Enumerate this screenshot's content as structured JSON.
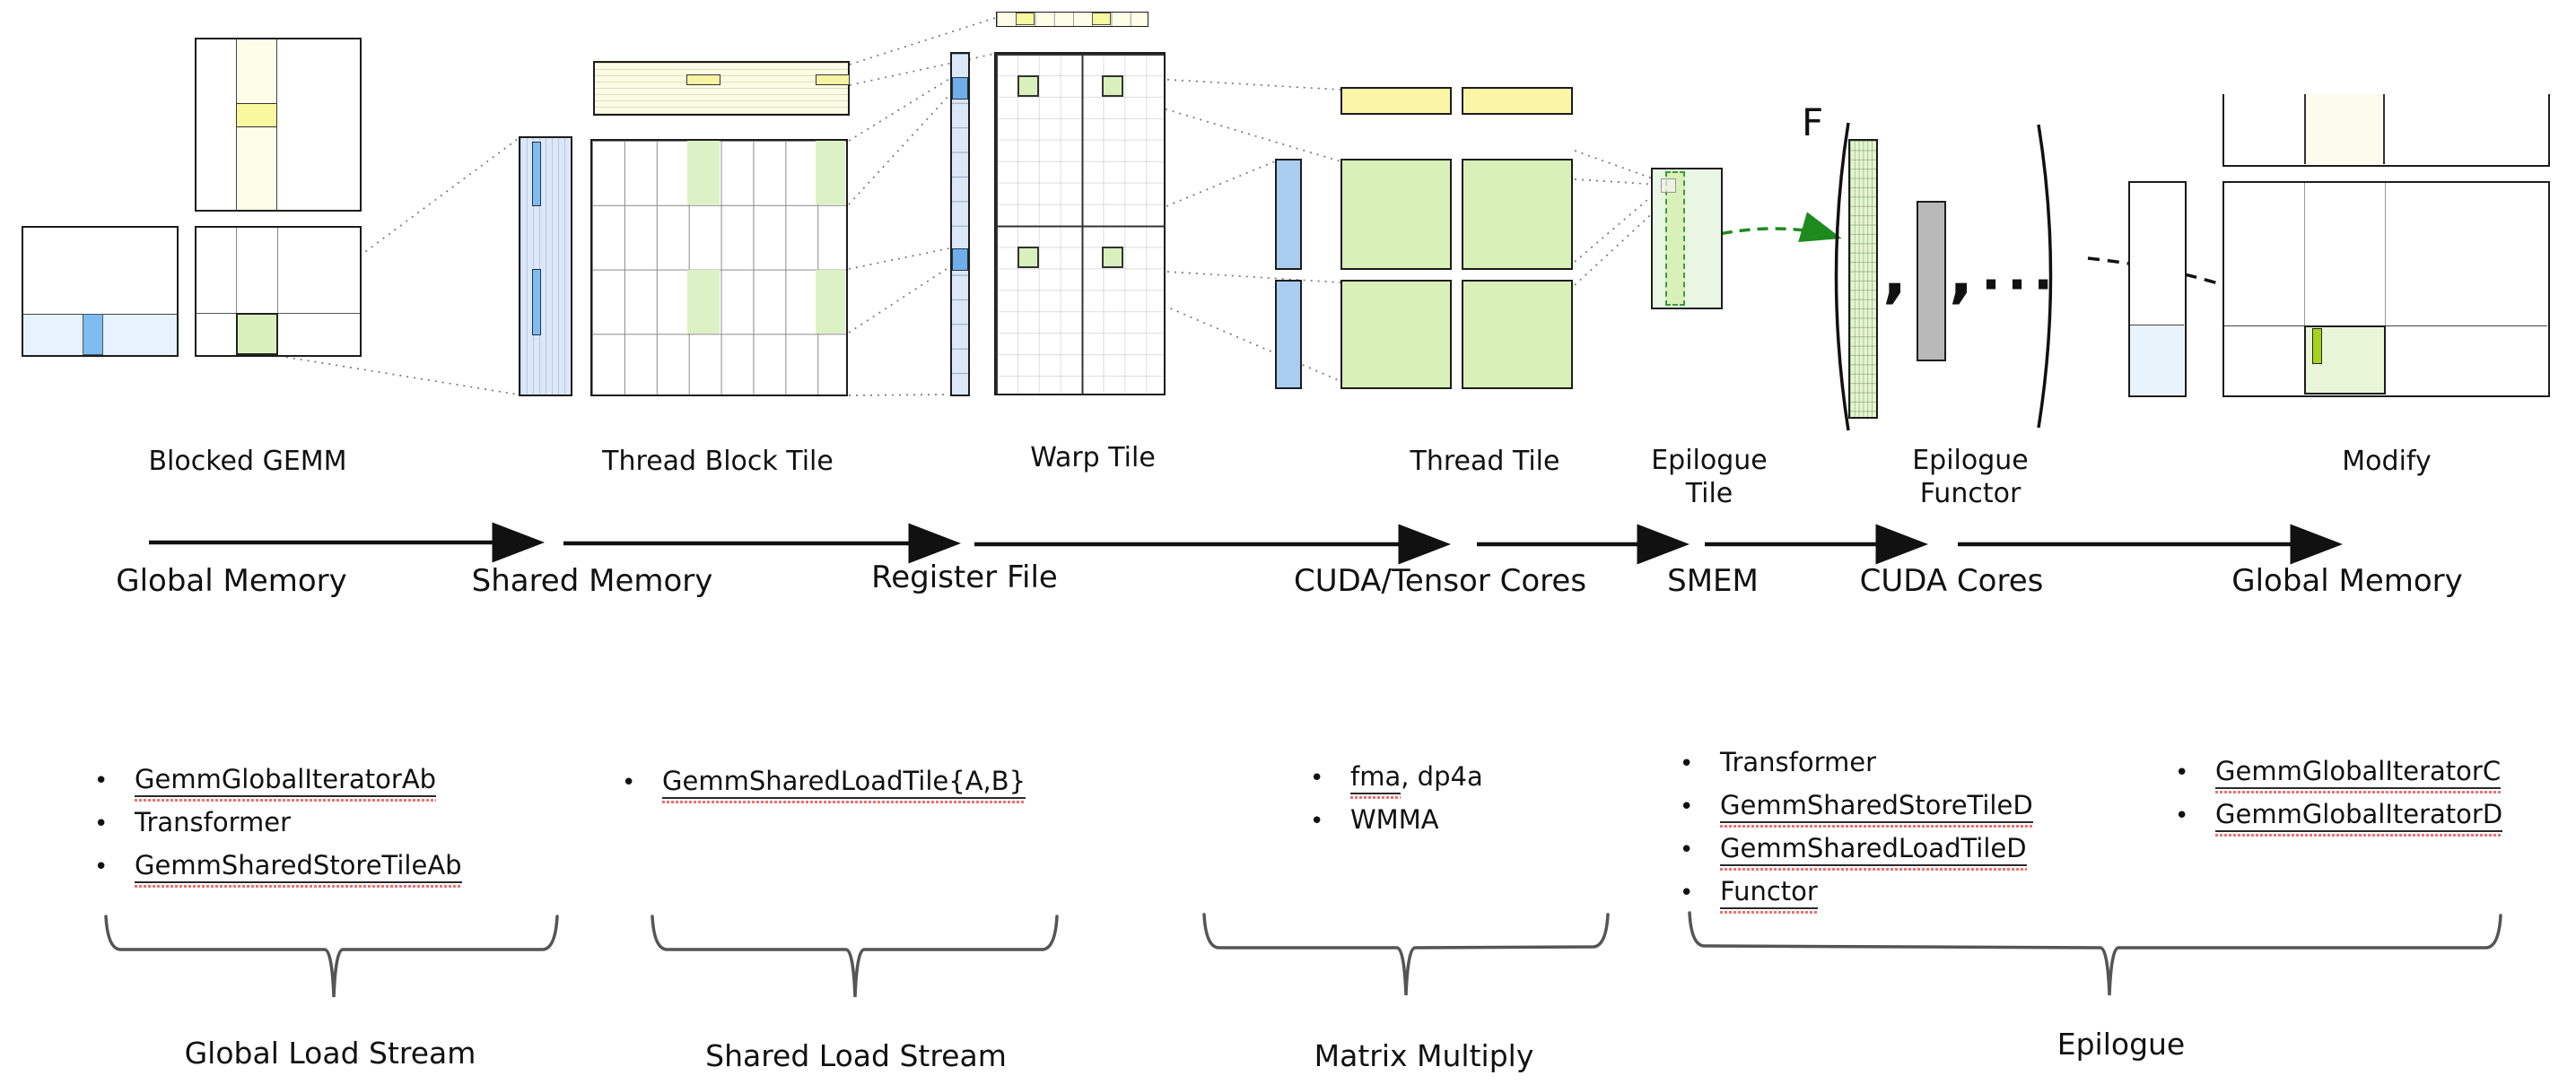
{
  "title": "CUTLASS GEMM hierarchy diagram",
  "colors": {
    "yellow_highlight": "#f8f89e",
    "cream_band": "#fdfdea",
    "green_tile": "#d9f0bc",
    "green_pale": "#eaf6e4",
    "blue_pale": "#e7f2fc",
    "blue_mid": "#7fbcef",
    "blue_cell": "#a9cdf1",
    "blue_strip": "#dce8f8",
    "gray_column": "#b9b9b9",
    "chartreuse_bar": "#a4d41a",
    "green_arrow": "#1e8a1e",
    "squiggle_red": "#f07070"
  },
  "stages": {
    "blocked_gemm": "Blocked GEMM",
    "thread_block_tile": "Thread Block Tile",
    "warp_tile": "Warp Tile",
    "thread_tile": "Thread Tile",
    "epilogue_tile_line1": "Epilogue",
    "epilogue_tile_line2": "Tile",
    "epilogue_functor_line1": "Epilogue",
    "epilogue_functor_line2": "Functor",
    "modify": "Modify"
  },
  "memory_flow": [
    {
      "label": "Global Memory"
    },
    {
      "label": "Shared Memory"
    },
    {
      "label": "Register File"
    },
    {
      "label": "CUDA/Tensor Cores"
    },
    {
      "label": "SMEM"
    },
    {
      "label": "CUDA Cores"
    },
    {
      "label": "Global Memory"
    }
  ],
  "functor": {
    "f": "F",
    "comma": ",",
    "ellipsis": "···"
  },
  "bullets_glyph": "•",
  "bullet_groups": [
    {
      "name": "global-load-stream-classes",
      "items": [
        {
          "segments": [
            {
              "text": "GemmGlobalIteratorAb",
              "underlined": true
            }
          ]
        },
        {
          "segments": [
            {
              "text": "Transformer",
              "underlined": false
            }
          ]
        },
        {
          "segments": [
            {
              "text": "GemmSharedStoreTileAb",
              "underlined": true
            }
          ]
        }
      ]
    },
    {
      "name": "shared-load-stream-classes",
      "items": [
        {
          "segments": [
            {
              "text": "GemmSharedLoadTile{A,B}",
              "underlined": true
            }
          ]
        }
      ]
    },
    {
      "name": "matrix-multiply-ops",
      "items": [
        {
          "segments": [
            {
              "text": "fma",
              "underlined": true
            },
            {
              "text": ", dp4a",
              "underlined": false
            }
          ]
        },
        {
          "segments": [
            {
              "text": "WMMA",
              "underlined": false
            }
          ]
        }
      ]
    },
    {
      "name": "epilogue-classes",
      "items": [
        {
          "segments": [
            {
              "text": "Transformer",
              "underlined": false
            }
          ]
        },
        {
          "segments": [
            {
              "text": "GemmSharedStoreTileD",
              "underlined": true
            }
          ]
        },
        {
          "segments": [
            {
              "text": "GemmSharedLoadTileD",
              "underlined": true
            }
          ]
        },
        {
          "segments": [
            {
              "text": "Functor",
              "underlined": true
            }
          ]
        }
      ]
    },
    {
      "name": "global-store-classes",
      "items": [
        {
          "segments": [
            {
              "text": "GemmGlobalIteratorC",
              "underlined": true
            }
          ]
        },
        {
          "segments": [
            {
              "text": "GemmGlobalIteratorD",
              "underlined": true
            }
          ]
        }
      ]
    }
  ],
  "brace_labels": [
    {
      "label": "Global Load Stream"
    },
    {
      "label": "Shared Load Stream"
    },
    {
      "label": "Matrix Multiply"
    },
    {
      "label": "Epilogue"
    }
  ]
}
